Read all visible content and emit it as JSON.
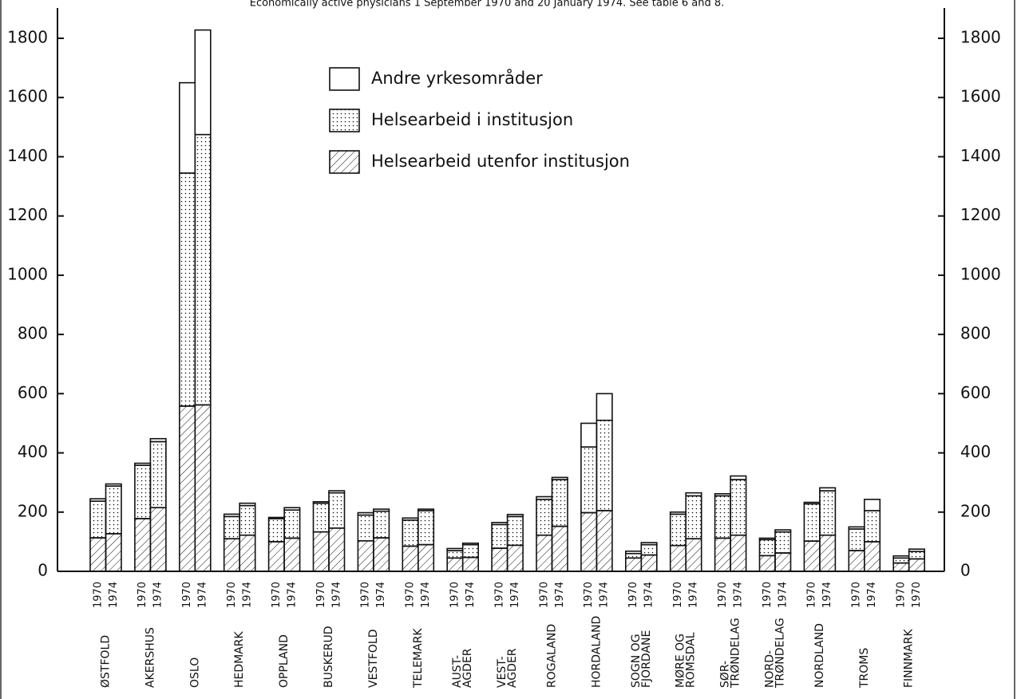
{
  "chart_data": {
    "type": "stacked-bar",
    "title": "Economically active physicians 1 September 1970 and 20 January 1974. See table 6 and 8.",
    "categories": [
      "1970",
      "1974",
      "1970",
      "1974",
      "1970",
      "1974",
      "1970",
      "1974",
      "1970",
      "1974",
      "1970",
      "1974",
      "1970",
      "1974",
      "1970",
      "1974",
      "1970",
      "1974",
      "1970",
      "1974",
      "1970",
      "1974",
      "1970",
      "1974",
      "1970",
      "1974",
      "1970",
      "1974",
      "1970",
      "1974",
      "1970",
      "1974",
      "1970",
      "1974",
      "1970",
      "1974",
      "1970",
      "1970"
    ],
    "groups": [
      [
        "ØSTFOLD"
      ],
      [
        "AKERSHUS"
      ],
      [
        "OSLO"
      ],
      [
        "HEDMARK"
      ],
      [
        "OPPLAND"
      ],
      [
        "BUSKERUD"
      ],
      [
        "VESTFOLD"
      ],
      [
        "TELEMARK"
      ],
      [
        "AUST-",
        "AGDER"
      ],
      [
        "VEST-",
        "AGDER"
      ],
      [
        "ROGALAND"
      ],
      [
        "HORDALAND"
      ],
      [
        "SOGN OG",
        "FJORDANE"
      ],
      [
        "MØRE OG",
        "ROMSDAL"
      ],
      [
        "SØR-",
        "TRØNDELAG"
      ],
      [
        "NORD-",
        "TRØNDELAG"
      ],
      [
        "NORDLAND"
      ],
      [
        "TROMS"
      ],
      [
        "FINNMARK"
      ]
    ],
    "series": [
      {
        "name": "Helsearbeid utenfor institusjon",
        "pattern": "hatch",
        "color": "#111111",
        "values": [
          113,
          127,
          178,
          215,
          558,
          562,
          110,
          122,
          100,
          112,
          133,
          146,
          103,
          113,
          85,
          90,
          45,
          47,
          78,
          88,
          122,
          152,
          198,
          205,
          45,
          55,
          87,
          110,
          112,
          122,
          53,
          62,
          102,
          122,
          70,
          100,
          28,
          42
        ]
      },
      {
        "name": "Helsearbeid i institusjon",
        "pattern": "dots",
        "color": "#111111",
        "values": [
          124,
          161,
          180,
          223,
          787,
          913,
          75,
          100,
          78,
          95,
          97,
          119,
          87,
          90,
          88,
          115,
          25,
          43,
          80,
          97,
          121,
          158,
          222,
          305,
          15,
          35,
          106,
          145,
          143,
          188,
          54,
          71,
          126,
          150,
          73,
          105,
          17,
          25
        ]
      },
      {
        "name": "Andre yrkesområder",
        "pattern": "none",
        "color": "#111111",
        "values": [
          8,
          7,
          7,
          10,
          305,
          353,
          8,
          8,
          4,
          8,
          5,
          7,
          8,
          7,
          7,
          5,
          7,
          5,
          7,
          7,
          9,
          7,
          80,
          90,
          8,
          7,
          7,
          10,
          7,
          12,
          5,
          7,
          5,
          10,
          7,
          38,
          7,
          8
        ]
      }
    ],
    "ylim": [
      0,
      1800
    ],
    "yticks": [
      0,
      200,
      400,
      600,
      800,
      1000,
      1200,
      1400,
      1600,
      1800
    ],
    "y2lim": [
      0,
      1800
    ],
    "y2ticks": [
      0,
      200,
      400,
      600,
      800,
      1000,
      1200,
      1400,
      1600,
      1800
    ]
  }
}
